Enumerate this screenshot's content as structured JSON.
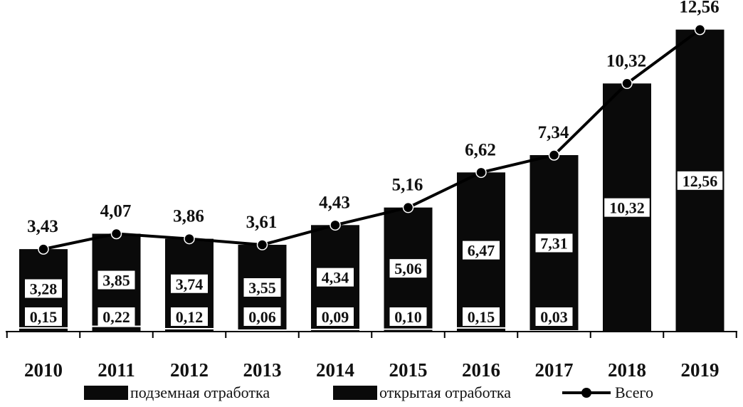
{
  "chart_data": {
    "type": "bar",
    "stacked": true,
    "categories": [
      "2010",
      "2011",
      "2012",
      "2013",
      "2014",
      "2015",
      "2016",
      "2017",
      "2018",
      "2019"
    ],
    "series": [
      {
        "name": "подземная отработка",
        "values": [
          3.28,
          3.85,
          3.74,
          3.55,
          4.34,
          5.06,
          6.47,
          7.31,
          10.32,
          12.56
        ],
        "labels": [
          "3,28",
          "3,85",
          "3,74",
          "3,55",
          "4,34",
          "5,06",
          "6,47",
          "7,31",
          "10,32",
          "12,56"
        ],
        "color": "#0a0a0a"
      },
      {
        "name": "открытая отработка",
        "values": [
          0.15,
          0.22,
          0.12,
          0.06,
          0.09,
          0.1,
          0.15,
          0.03,
          0,
          0
        ],
        "labels": [
          "0,15",
          "0,22",
          "0,12",
          "0,06",
          "0,09",
          "0,10",
          "0,15",
          "0,03",
          "",
          ""
        ],
        "color": "#0a0a0a"
      },
      {
        "name": "Всего",
        "type": "line",
        "values": [
          3.43,
          4.07,
          3.86,
          3.61,
          4.43,
          5.16,
          6.62,
          7.34,
          10.32,
          12.56
        ],
        "labels": [
          "3,43",
          "4,07",
          "3,86",
          "3,61",
          "4,43",
          "5,16",
          "6,62",
          "7,34",
          "10,32",
          "12,56"
        ],
        "color": "#000000"
      }
    ],
    "ylim": [
      0,
      13.2
    ],
    "grid": false,
    "legend": "bottom",
    "title": "",
    "xlabel": "",
    "ylabel": ""
  }
}
